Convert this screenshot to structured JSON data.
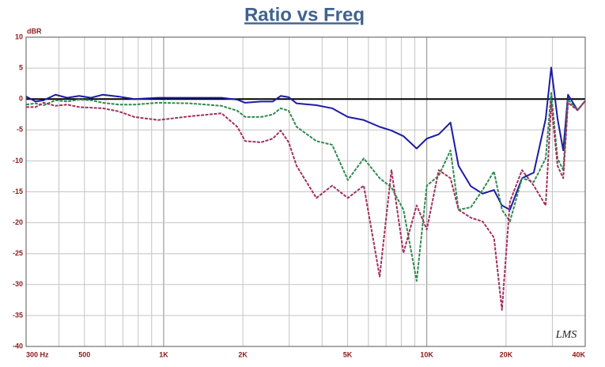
{
  "chart_data": {
    "type": "line",
    "title": "Ratio vs Freq",
    "y_label": "dBR",
    "annotation": "LMS",
    "xscale": "log",
    "grid": true,
    "xlim": [
      300,
      40000
    ],
    "ylim": [
      -40,
      10
    ],
    "xticks": [
      {
        "value": 300,
        "label": "300 Hz"
      },
      500,
      {
        "value": 1000,
        "label": "1K"
      },
      {
        "value": 2000,
        "label": "2K"
      },
      {
        "value": 5000,
        "label": "5K"
      },
      {
        "value": 10000,
        "label": "10K"
      },
      {
        "value": 20000,
        "label": "20K"
      },
      {
        "value": 40000,
        "label": "40K"
      }
    ],
    "xgrid": [
      300,
      400,
      500,
      600,
      700,
      800,
      900,
      1000,
      2000,
      3000,
      4000,
      5000,
      6000,
      7000,
      8000,
      9000,
      10000,
      20000,
      30000,
      40000
    ],
    "yticks": [
      10,
      5,
      0,
      -5,
      -10,
      -15,
      -20,
      -25,
      -30,
      -35,
      -40
    ],
    "x": [
      300,
      326,
      350,
      388,
      430,
      477,
      529,
      587,
      674,
      774,
      953,
      1257,
      1659,
      1905,
      2040,
      2344,
      2599,
      2783,
      2986,
      3200,
      3805,
      4368,
      5010,
      5760,
      6620,
      7340,
      8150,
      9150,
      10000,
      11100,
      12300,
      13200,
      14700,
      16300,
      18000,
      19300,
      20700,
      23000,
      25500,
      28300,
      29700,
      31400,
      33000,
      34400,
      37400,
      40000
    ],
    "series": [
      {
        "color": "#1c1ca6",
        "dashed": false,
        "values": [
          0.4,
          -0.4,
          -0.2,
          0.7,
          0.2,
          0.5,
          0.2,
          0.7,
          0.4,
          0,
          0.2,
          0.2,
          0.2,
          -0.1,
          -0.6,
          -0.4,
          -0.4,
          0.5,
          0.3,
          -0.7,
          -1,
          -1.5,
          -2.9,
          -3.4,
          -4.5,
          -5.1,
          -6,
          -8,
          -6.4,
          -5.7,
          -3.8,
          -10.8,
          -14.1,
          -15.3,
          -14.7,
          -17.2,
          -17.9,
          -12.8,
          -11.9,
          -3.2,
          5.1,
          -3.2,
          -8.3,
          0.7,
          -1.8,
          -0.3
        ]
      },
      {
        "color": "#2f8a4e",
        "dashed": true,
        "values": [
          -0.9,
          -0.7,
          -1,
          -0.2,
          -0.4,
          -0.1,
          -0.2,
          -0.6,
          -0.9,
          -0.9,
          -0.6,
          -0.7,
          -1.1,
          -1.9,
          -2.9,
          -2.9,
          -2.5,
          -1.5,
          -1.9,
          -4.5,
          -6.8,
          -7.4,
          -13.1,
          -9.6,
          -12.8,
          -14.3,
          -17.9,
          -29.4,
          -14,
          -12.4,
          -8.3,
          -17.9,
          -17.5,
          -14.7,
          -11.7,
          -17.9,
          -19.8,
          -12.8,
          -13.4,
          -9.6,
          1,
          -9.6,
          -11.5,
          -0.1,
          -1.8,
          -0.3
        ]
      },
      {
        "color": "#a3305e",
        "dashed": true,
        "values": [
          -1.3,
          -1.3,
          -0.6,
          -1.1,
          -0.9,
          -1.3,
          -1.4,
          -1.5,
          -2,
          -2.9,
          -3.4,
          -2.8,
          -2.3,
          -4.5,
          -6.8,
          -7,
          -6.4,
          -5.1,
          -7,
          -10.8,
          -16,
          -14,
          -16,
          -14,
          -28.7,
          -11.5,
          -24.9,
          -17.2,
          -21.1,
          -11.5,
          -12.8,
          -17.9,
          -19.2,
          -19.8,
          -22.4,
          -34.1,
          -16.6,
          -11.5,
          -14,
          -17.2,
          -0.6,
          -10.8,
          -12.8,
          -0.6,
          -1.8,
          -0.3
        ]
      }
    ]
  }
}
